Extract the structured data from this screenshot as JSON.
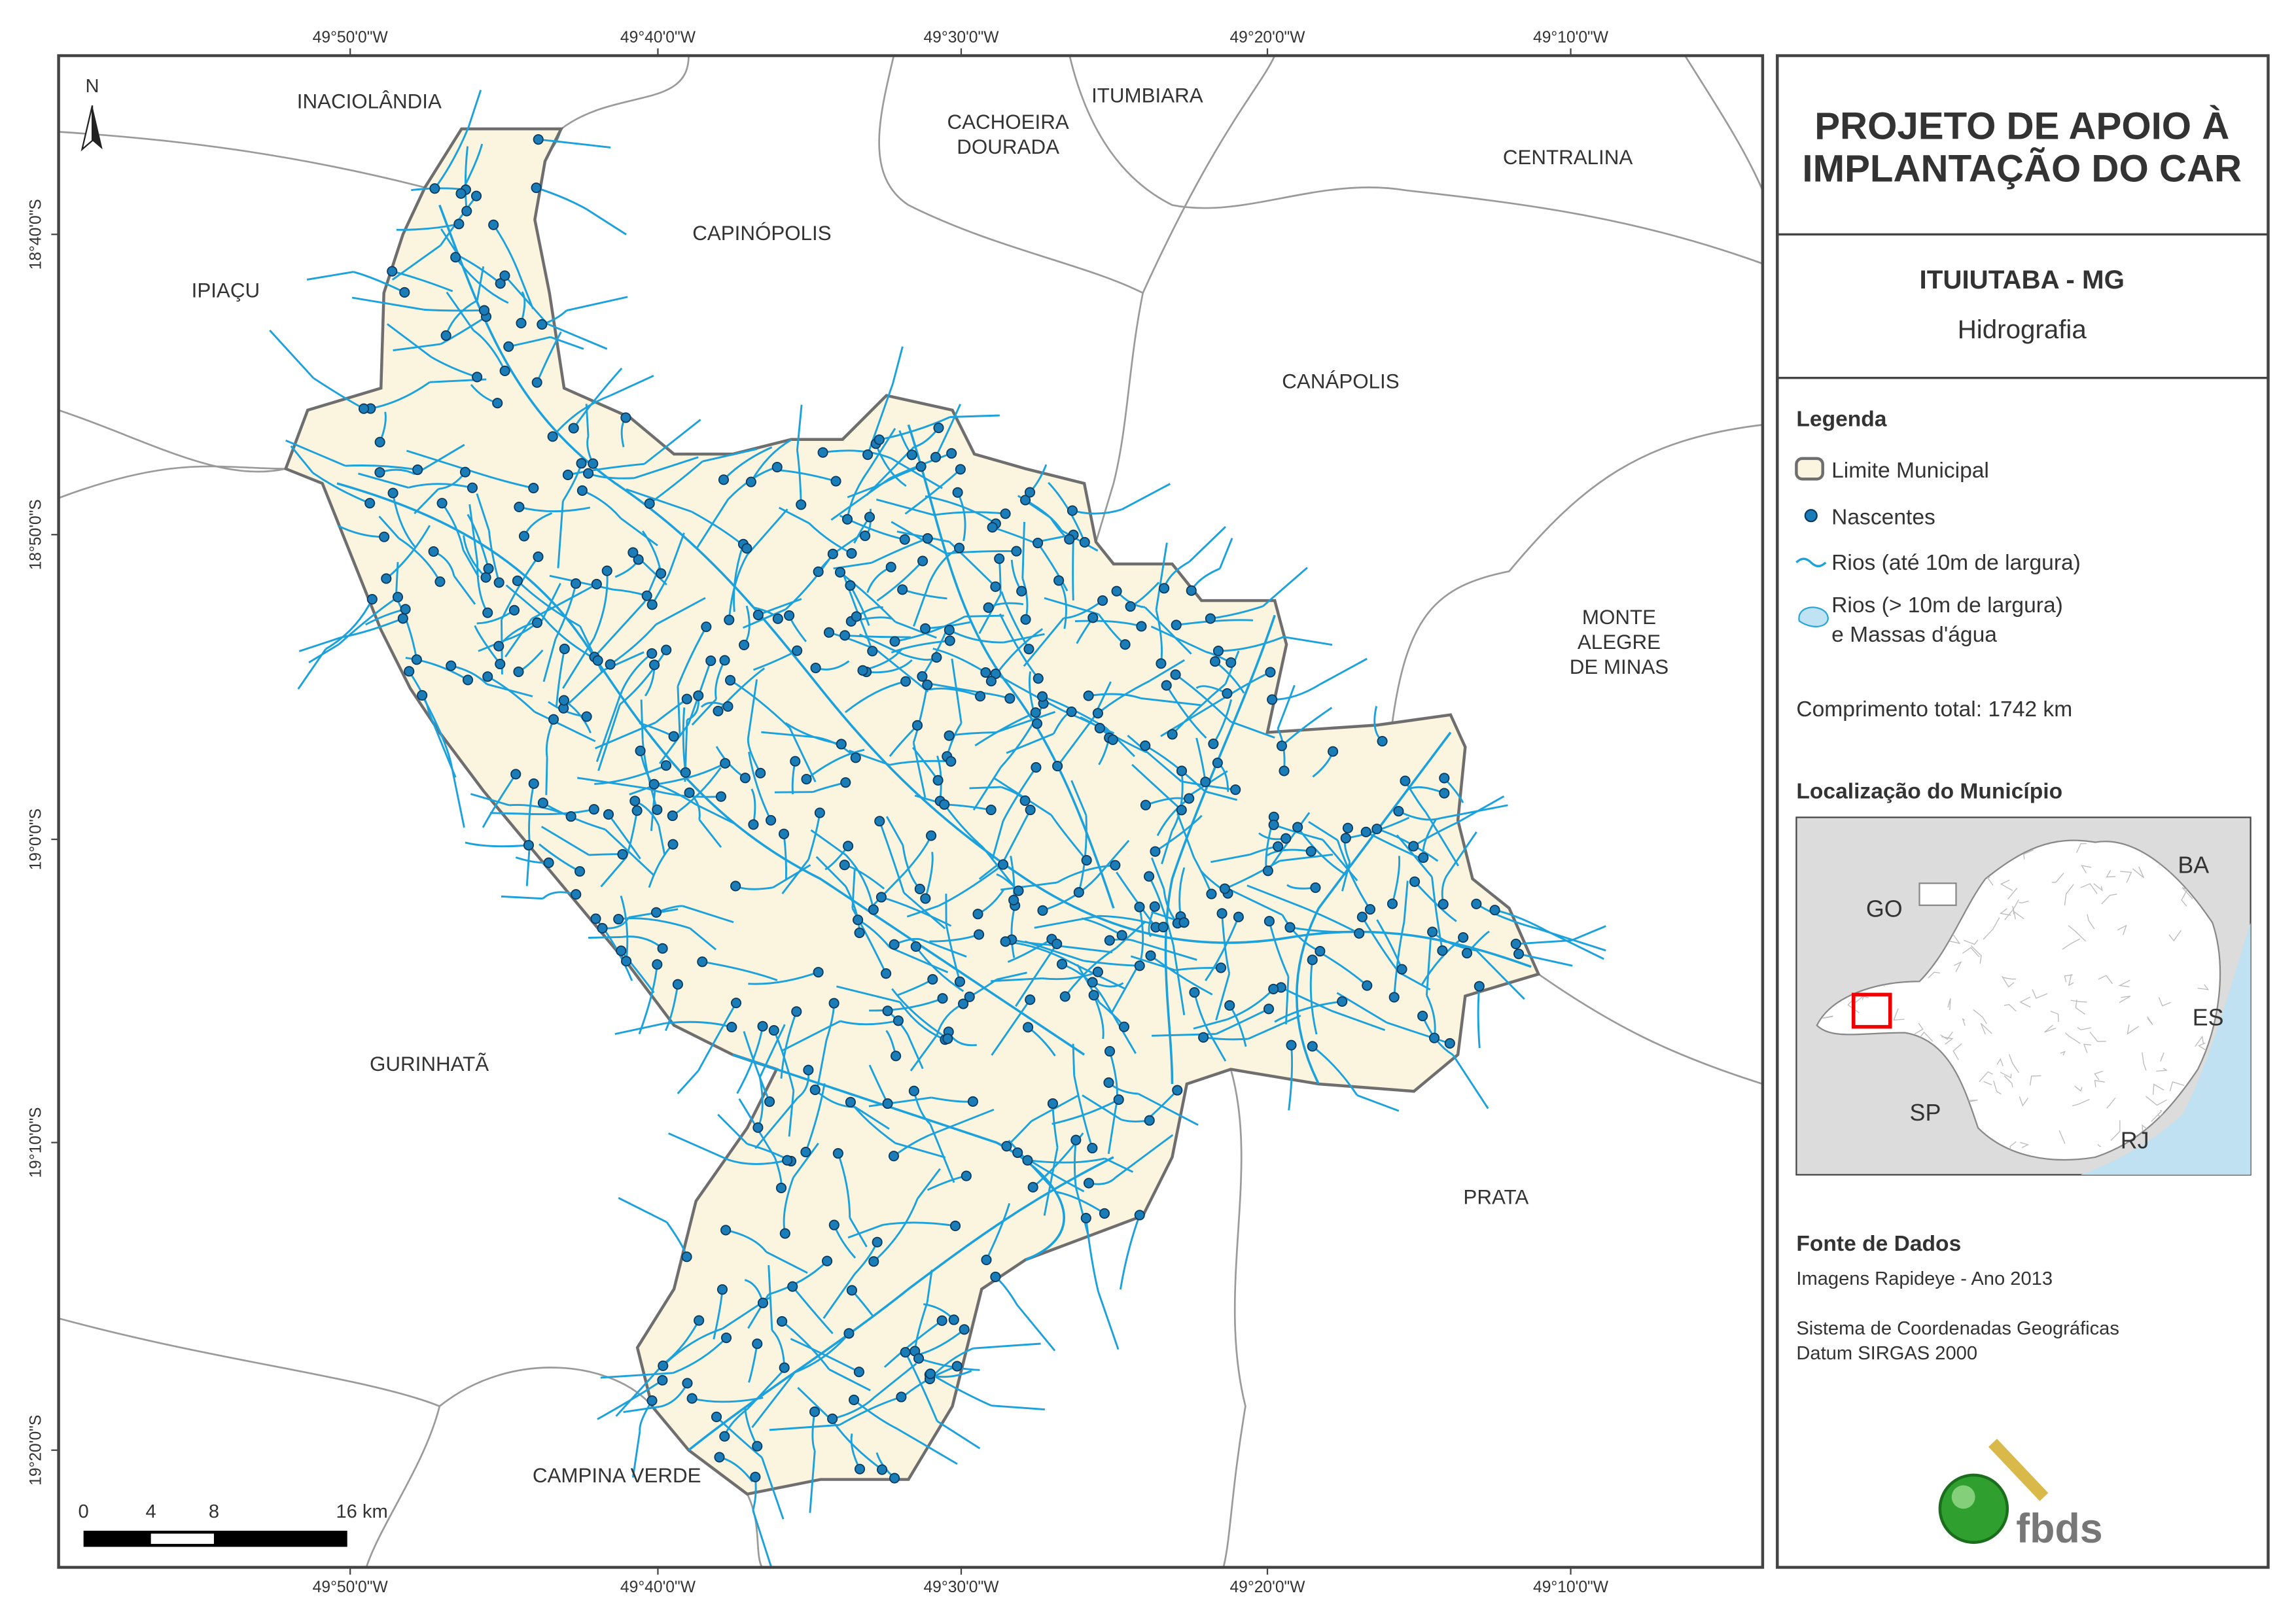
{
  "map": {
    "top_coords": [
      "49°50'0\"W",
      "49°40'0\"W",
      "49°30'0\"W",
      "49°20'0\"W",
      "49°10'0\"W"
    ],
    "bottom_coords": [
      "49°50'0\"W",
      "49°40'0\"W",
      "49°30'0\"W",
      "49°20'0\"W",
      "49°10'0\"W"
    ],
    "left_coords": [
      "18°40'0\"S",
      "18°50'0\"S",
      "19°0'0\"S",
      "19°10'0\"S",
      "19°20'0\"S"
    ],
    "north": "N",
    "places": [
      "INACIOLÂNDIA",
      "CACHOEIRA",
      "DOURADA",
      "ITUMBIARA",
      "CENTRALINA",
      "CAPINÓPOLIS",
      "IPIAÇU",
      "CANÁPOLIS",
      "MONTE",
      "ALEGRE",
      "DE MINAS",
      "GURINHATÃ",
      "PRATA",
      "CAMPINA VERDE"
    ],
    "scale_labels": [
      "0",
      "4",
      "8",
      "16 km"
    ]
  },
  "panel": {
    "title_lines": [
      "PROJETO DE APOIO À",
      "IMPLANTAÇÃO DO CAR"
    ],
    "municipality": "ITUIUTABA - MG",
    "theme": "Hidrografia",
    "legend": {
      "title": "Legenda",
      "items": [
        "Limite Municipal",
        "Nascentes",
        "Rios (até 10m de largura)",
        "Rios (> 10m de largura)",
        "e Massas d'água"
      ]
    },
    "total_length": "Comprimento total:  1742 km",
    "location": {
      "title": "Localização do Município",
      "states": [
        "GO",
        "BA",
        "ES",
        "SP",
        "RJ"
      ]
    },
    "sources": {
      "title": "Fonte de Dados",
      "lines": [
        "Imagens Rapideye - Ano 2013",
        "Sistema de Coordenadas Geográficas",
        "Datum SIRGAS 2000"
      ]
    },
    "logo": "fbds"
  }
}
